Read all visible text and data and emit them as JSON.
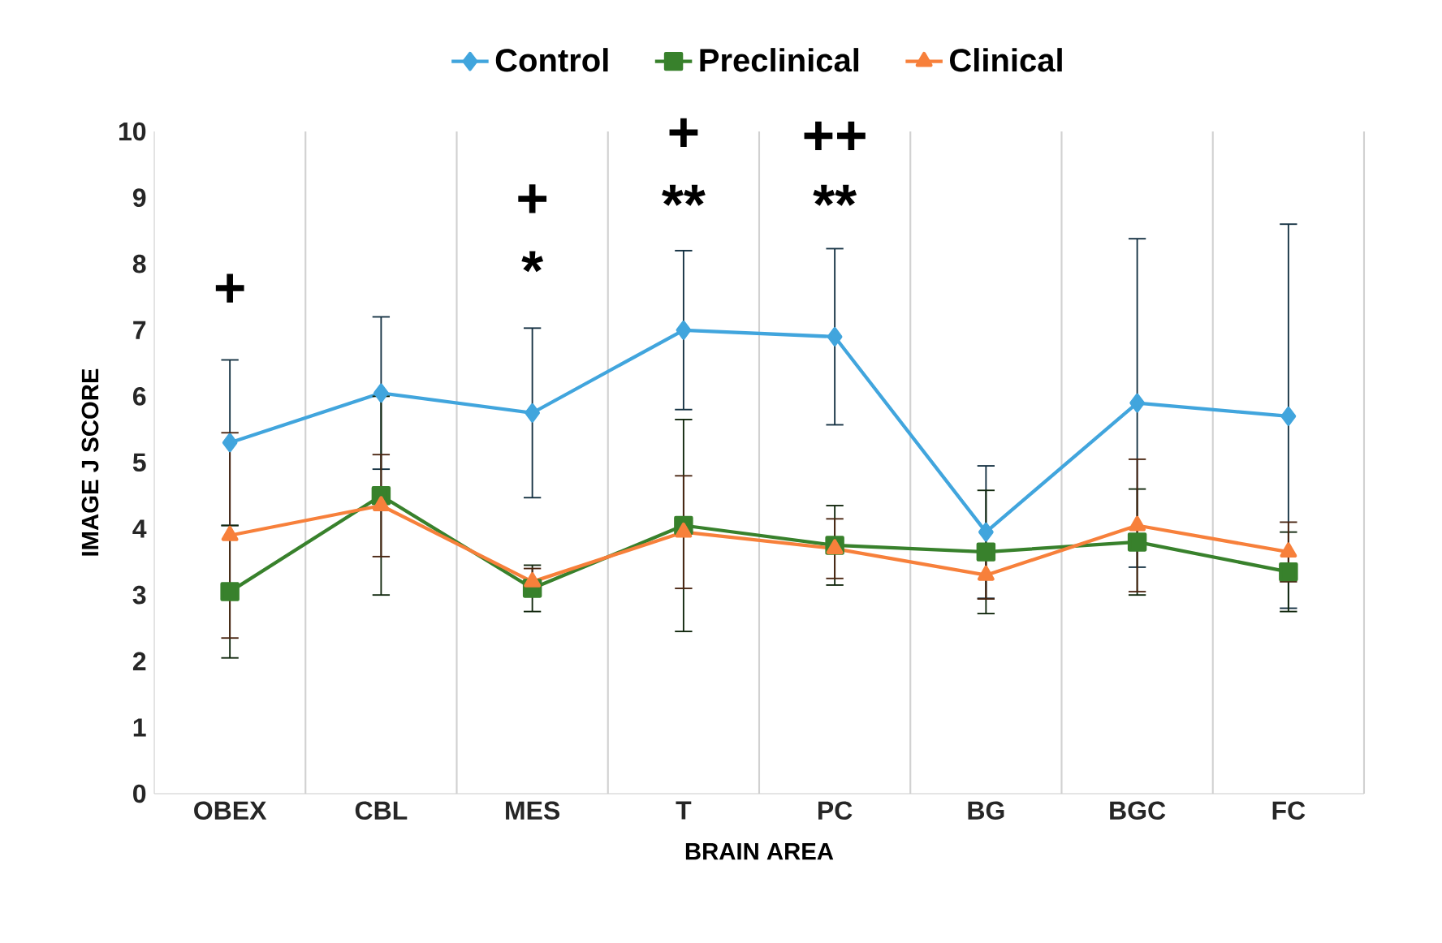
{
  "chart_data": {
    "type": "line",
    "xlabel": "BRAIN AREA",
    "ylabel": "IMAGE J SCORE",
    "categories": [
      "OBEX",
      "CBL",
      "MES",
      "T",
      "PC",
      "BG",
      "BGC",
      "FC"
    ],
    "series": [
      {
        "name": "Control",
        "color": "#41a5dd",
        "marker": "diamond",
        "values": [
          5.3,
          6.05,
          5.75,
          7.0,
          6.9,
          3.95,
          5.9,
          5.7
        ],
        "errors": [
          1.25,
          1.15,
          1.28,
          1.2,
          1.33,
          1.0,
          2.48,
          2.9
        ]
      },
      {
        "name": "Preclinical",
        "color": "#38812c",
        "marker": "square",
        "values": [
          3.05,
          4.5,
          3.1,
          4.05,
          3.75,
          3.65,
          3.8,
          3.35
        ],
        "errors": [
          1.0,
          1.5,
          0.35,
          1.6,
          0.6,
          0.93,
          0.8,
          0.6
        ]
      },
      {
        "name": "Clinical",
        "color": "#f7803b",
        "marker": "triangle",
        "values": [
          3.9,
          4.35,
          3.2,
          3.95,
          3.7,
          3.3,
          4.05,
          3.65
        ],
        "errors": [
          1.55,
          0.77,
          0.2,
          0.85,
          0.45,
          0.36,
          1.0,
          0.45
        ]
      }
    ],
    "ylim": [
      0,
      10
    ],
    "yticks": [
      0,
      1,
      2,
      3,
      4,
      5,
      6,
      7,
      8,
      9,
      10
    ],
    "grid": "x",
    "legend": "top",
    "annotations": [
      "+",
      "+",
      "*",
      "+",
      "**",
      "++",
      "**"
    ]
  }
}
